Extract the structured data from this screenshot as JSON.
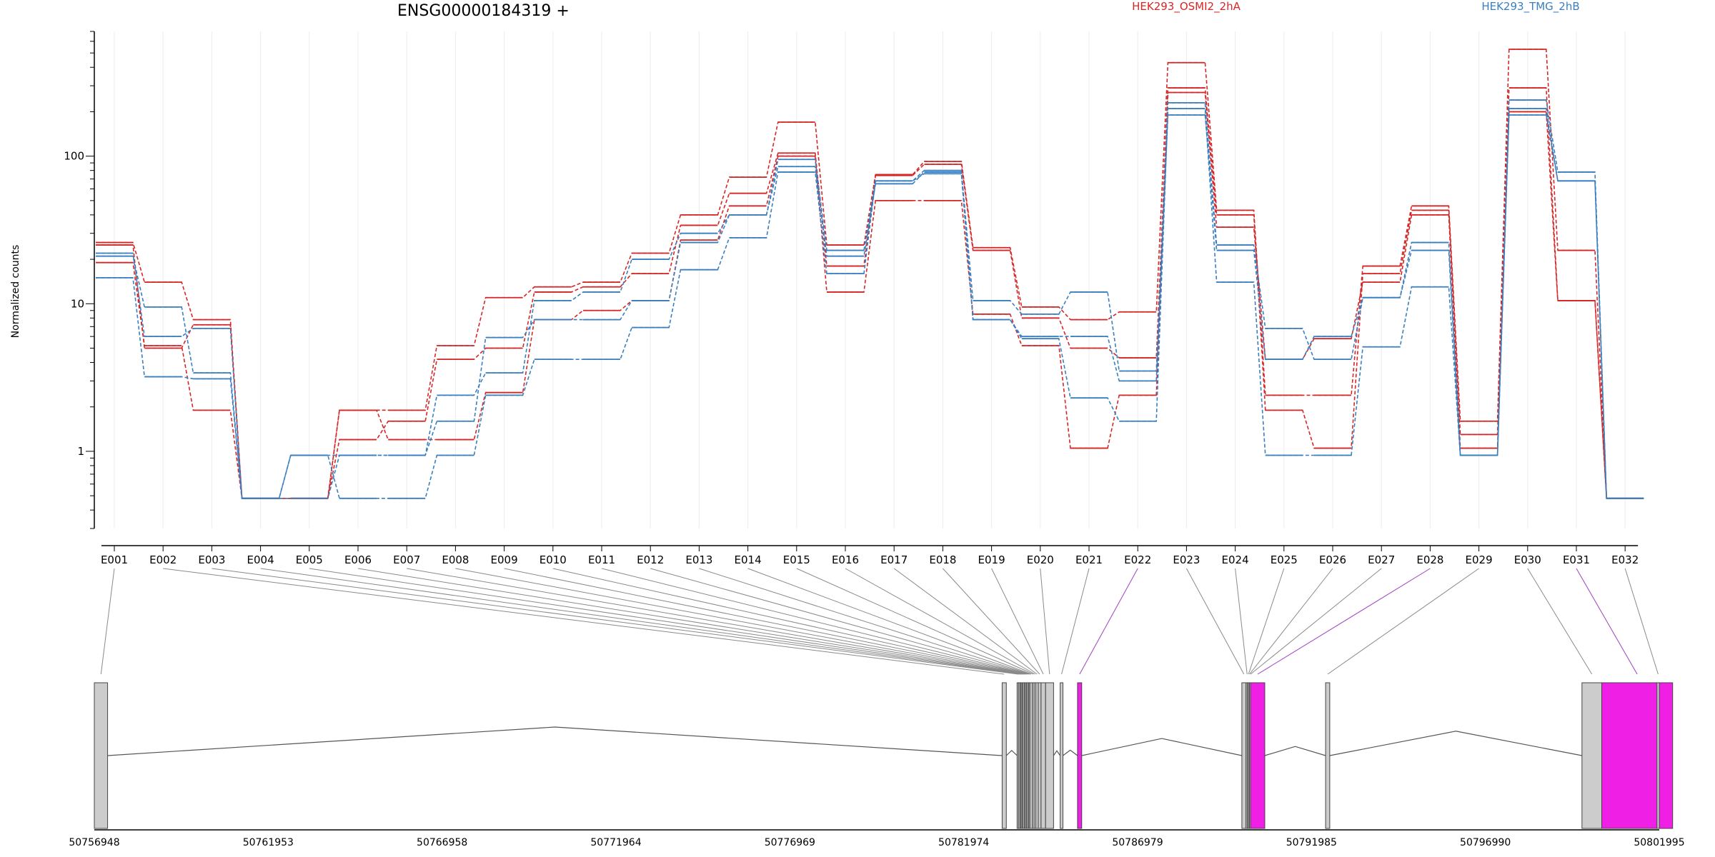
{
  "title": "ENSG00000184319 +",
  "legend": {
    "groups": [
      {
        "label": "HEK293_OSMI2_2hA",
        "color": "#d62728"
      },
      {
        "label": "HEK293_TMG_2hB",
        "color": "#3a7fbf"
      }
    ]
  },
  "chart_data": {
    "type": "line",
    "xlabel": "",
    "ylabel": "Normalized counts",
    "yscale": "log",
    "ylim": [
      0.3,
      700
    ],
    "yticks": [
      1,
      10,
      100
    ],
    "yticklabels": [
      "1",
      "10",
      "100"
    ],
    "categories": [
      "E001",
      "E002",
      "E003",
      "E004",
      "E005",
      "E006",
      "E007",
      "E008",
      "E009",
      "E010",
      "E011",
      "E012",
      "E013",
      "E014",
      "E015",
      "E016",
      "E017",
      "E018",
      "E019",
      "E020",
      "E021",
      "E022",
      "E023",
      "E024",
      "E025",
      "E026",
      "E027",
      "E028",
      "E029",
      "E030",
      "E031",
      "E032"
    ],
    "series": [
      {
        "group": "HEK293_OSMI2_2hA",
        "color": "#d62728",
        "values": [
          26,
          14,
          7.8,
          0.48,
          0.48,
          1.9,
          1.9,
          5.2,
          11,
          13,
          14,
          22,
          40,
          72,
          170,
          25,
          75,
          92,
          24,
          9.5,
          7.8,
          8.8,
          430,
          43,
          2.4,
          2.4,
          18,
          46,
          1.6,
          530,
          23,
          0.48
        ]
      },
      {
        "group": "HEK293_OSMI2_2hA",
        "color": "#d62728",
        "values": [
          25,
          5,
          7.2,
          0.48,
          0.48,
          1.2,
          1.6,
          4.2,
          5,
          12,
          13,
          16,
          34,
          56,
          105,
          18,
          74,
          88,
          23,
          8,
          5,
          4.3,
          290,
          40,
          1.9,
          1.05,
          16,
          43,
          1.3,
          290,
          10.5,
          0.48
        ]
      },
      {
        "group": "HEK293_OSMI2_2hA",
        "color": "#d62728",
        "values": [
          19,
          5.2,
          1.9,
          0.48,
          0.48,
          1.9,
          1.2,
          1.2,
          2.5,
          7.8,
          9,
          10.5,
          27,
          46,
          100,
          12,
          50,
          50,
          8.5,
          5.2,
          1.05,
          2.4,
          270,
          33,
          4.2,
          5.8,
          14,
          40,
          1.05,
          200,
          10.5,
          0.48
        ]
      },
      {
        "group": "HEK293_TMG_2hB",
        "color": "#3a7fbf",
        "values": [
          21,
          9.5,
          3.4,
          0.48,
          0.94,
          0.94,
          0.94,
          2.4,
          3.4,
          10.5,
          12,
          20,
          30,
          40,
          95,
          23,
          68,
          80,
          10.5,
          8.5,
          12,
          3.5,
          230,
          25,
          6.8,
          4.2,
          11,
          26,
          0.94,
          240,
          78,
          0.48
        ]
      },
      {
        "group": "HEK293_TMG_2hB",
        "color": "#3a7fbf",
        "values": [
          22,
          6,
          6.8,
          0.48,
          0.48,
          0.94,
          0.94,
          1.6,
          5.9,
          7.8,
          7.8,
          10.5,
          26,
          40,
          85,
          21,
          65,
          78,
          7.8,
          6,
          6,
          3,
          190,
          23,
          4.2,
          6,
          11,
          23,
          0.94,
          210,
          68,
          0.48
        ]
      },
      {
        "group": "HEK293_TMG_2hB",
        "color": "#3a7fbf",
        "values": [
          15,
          3.2,
          3.1,
          0.48,
          0.94,
          0.48,
          0.48,
          0.94,
          2.4,
          4.2,
          4.2,
          6.9,
          17,
          28,
          78,
          16,
          68,
          76,
          7.8,
          5.8,
          2.3,
          1.6,
          210,
          14,
          0.94,
          0.94,
          5.1,
          13,
          0.94,
          190,
          68,
          0.48
        ]
      }
    ],
    "gene_model": {
      "genomic_ticks": [
        "50756948",
        "50761953",
        "50766958",
        "50771964",
        "50776969",
        "50781974",
        "50786979",
        "50791985",
        "50796990",
        "50801995"
      ],
      "genomic_range": [
        50756948,
        50801995
      ],
      "exons": [
        {
          "id": "E001",
          "start": 50756948,
          "end": 50757330,
          "highlight": false
        },
        {
          "id": "E002",
          "start": 50783080,
          "end": 50783200,
          "highlight": false
        },
        {
          "id": "E003",
          "start": 50783510,
          "end": 50783550,
          "highlight": false
        },
        {
          "id": "E004",
          "start": 50783550,
          "end": 50783590,
          "highlight": false
        },
        {
          "id": "E005",
          "start": 50783590,
          "end": 50783620,
          "highlight": false
        },
        {
          "id": "E006",
          "start": 50783620,
          "end": 50783650,
          "highlight": false
        },
        {
          "id": "E007",
          "start": 50783650,
          "end": 50783680,
          "highlight": false
        },
        {
          "id": "E008",
          "start": 50783680,
          "end": 50783720,
          "highlight": false
        },
        {
          "id": "E009",
          "start": 50783720,
          "end": 50783750,
          "highlight": false
        },
        {
          "id": "E010",
          "start": 50783750,
          "end": 50783780,
          "highlight": false
        },
        {
          "id": "E011",
          "start": 50783780,
          "end": 50783820,
          "highlight": false
        },
        {
          "id": "E012",
          "start": 50783820,
          "end": 50783850,
          "highlight": false
        },
        {
          "id": "E013",
          "start": 50783850,
          "end": 50783880,
          "highlight": false
        },
        {
          "id": "E014",
          "start": 50783880,
          "end": 50783950,
          "highlight": false
        },
        {
          "id": "E015",
          "start": 50783950,
          "end": 50784000,
          "highlight": false
        },
        {
          "id": "E016",
          "start": 50784000,
          "end": 50784050,
          "highlight": false
        },
        {
          "id": "E017",
          "start": 50784050,
          "end": 50784120,
          "highlight": false
        },
        {
          "id": "E018",
          "start": 50784120,
          "end": 50784200,
          "highlight": false
        },
        {
          "id": "E019",
          "start": 50784200,
          "end": 50784330,
          "highlight": false
        },
        {
          "id": "E020",
          "start": 50784330,
          "end": 50784560,
          "highlight": false
        },
        {
          "id": "E021",
          "start": 50784750,
          "end": 50784830,
          "highlight": false
        },
        {
          "id": "E022",
          "start": 50785250,
          "end": 50785370,
          "highlight": true
        },
        {
          "id": "E023",
          "start": 50789980,
          "end": 50790100,
          "highlight": false
        },
        {
          "id": "E024",
          "start": 50790100,
          "end": 50790140,
          "highlight": false
        },
        {
          "id": "E025",
          "start": 50790140,
          "end": 50790170,
          "highlight": false
        },
        {
          "id": "E026",
          "start": 50790170,
          "end": 50790200,
          "highlight": false
        },
        {
          "id": "E027",
          "start": 50790200,
          "end": 50790230,
          "highlight": false
        },
        {
          "id": "E028",
          "start": 50790230,
          "end": 50790640,
          "highlight": true
        },
        {
          "id": "E029",
          "start": 50792390,
          "end": 50792510,
          "highlight": false
        },
        {
          "id": "E030",
          "start": 50799770,
          "end": 50800340,
          "highlight": false
        },
        {
          "id": "E031",
          "start": 50800340,
          "end": 50802380,
          "highlight": true
        },
        {
          "id": "E032",
          "start": 50801930,
          "end": 50801995,
          "highlight": false
        }
      ]
    }
  }
}
